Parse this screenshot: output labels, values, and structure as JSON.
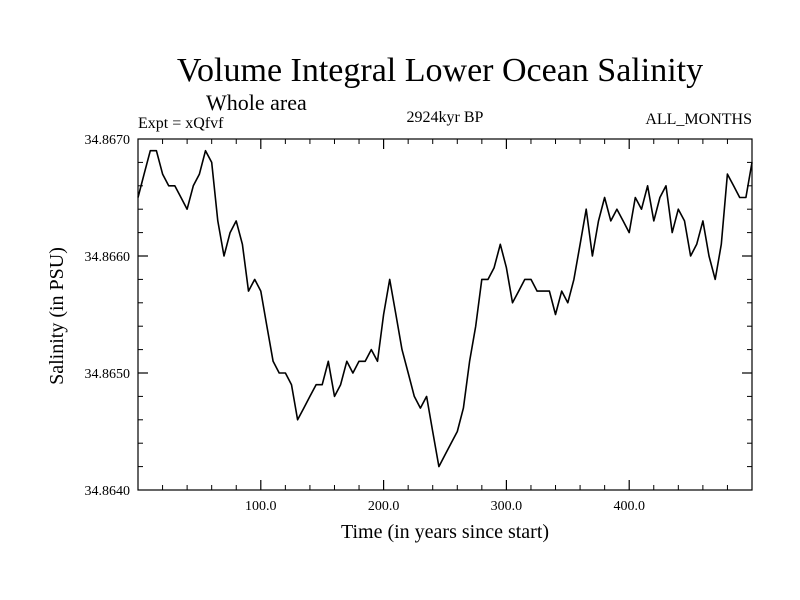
{
  "chart_data": {
    "type": "line",
    "title": "Volume Integral Lower Ocean Salinity",
    "subtitle": "Whole area",
    "annotations": {
      "experiment": "Expt = xQfvf",
      "period": "2924kyr BP",
      "months": "ALL_MONTHS"
    },
    "xlabel": "Time (in years since start)",
    "ylabel": "Salinity (in PSU)",
    "xlim": [
      0,
      500
    ],
    "ylim": [
      34.864,
      34.867
    ],
    "x_ticks": [
      {
        "value": 100,
        "label": "100.0"
      },
      {
        "value": 200,
        "label": "200.0"
      },
      {
        "value": 300,
        "label": "300.0"
      },
      {
        "value": 400,
        "label": "400.0"
      }
    ],
    "y_ticks": [
      {
        "value": 34.864,
        "label": "34.8640"
      },
      {
        "value": 34.865,
        "label": "34.8650"
      },
      {
        "value": 34.866,
        "label": "34.8660"
      },
      {
        "value": 34.867,
        "label": "34.8670"
      }
    ],
    "series": [
      {
        "name": "salinity",
        "color": "#000000",
        "x": [
          0,
          5,
          10,
          15,
          20,
          25,
          30,
          35,
          40,
          45,
          50,
          55,
          60,
          65,
          70,
          75,
          80,
          85,
          90,
          95,
          100,
          105,
          110,
          115,
          120,
          125,
          130,
          135,
          140,
          145,
          150,
          155,
          160,
          165,
          170,
          175,
          180,
          185,
          190,
          195,
          200,
          205,
          210,
          215,
          220,
          225,
          230,
          235,
          240,
          245,
          250,
          255,
          260,
          265,
          270,
          275,
          280,
          285,
          290,
          295,
          300,
          305,
          310,
          315,
          320,
          325,
          330,
          335,
          340,
          345,
          350,
          355,
          360,
          365,
          370,
          375,
          380,
          385,
          390,
          395,
          400,
          405,
          410,
          415,
          420,
          425,
          430,
          435,
          440,
          445,
          450,
          455,
          460,
          465,
          470,
          475,
          480,
          485,
          490,
          495,
          500
        ],
        "y": [
          34.8665,
          34.8667,
          34.8669,
          34.8669,
          34.8667,
          34.8666,
          34.8666,
          34.8665,
          34.8664,
          34.8666,
          34.8667,
          34.8669,
          34.8668,
          34.8663,
          34.866,
          34.8662,
          34.8663,
          34.8661,
          34.8657,
          34.8658,
          34.8657,
          34.8654,
          34.8651,
          34.865,
          34.865,
          34.8649,
          34.8646,
          34.8647,
          34.8648,
          34.8649,
          34.8649,
          34.8651,
          34.8648,
          34.8649,
          34.8651,
          34.865,
          34.8651,
          34.8651,
          34.8652,
          34.8651,
          34.8655,
          34.8658,
          34.8655,
          34.8652,
          34.865,
          34.8648,
          34.8647,
          34.8648,
          34.8645,
          34.8642,
          34.8643,
          34.8644,
          34.8645,
          34.8647,
          34.8651,
          34.8654,
          34.8658,
          34.8658,
          34.8659,
          34.8661,
          34.8659,
          34.8656,
          34.8657,
          34.8658,
          34.8658,
          34.8657,
          34.8657,
          34.8657,
          34.8655,
          34.8657,
          34.8656,
          34.8658,
          34.8661,
          34.8664,
          34.866,
          34.8663,
          34.8665,
          34.8663,
          34.8664,
          34.8663,
          34.8662,
          34.8665,
          34.8664,
          34.8666,
          34.8663,
          34.8665,
          34.8666,
          34.8662,
          34.8664,
          34.8663,
          34.866,
          34.8661,
          34.8663,
          34.866,
          34.8658,
          34.8661,
          34.8667,
          34.8666,
          34.8665,
          34.8665,
          34.8668
        ]
      }
    ]
  }
}
